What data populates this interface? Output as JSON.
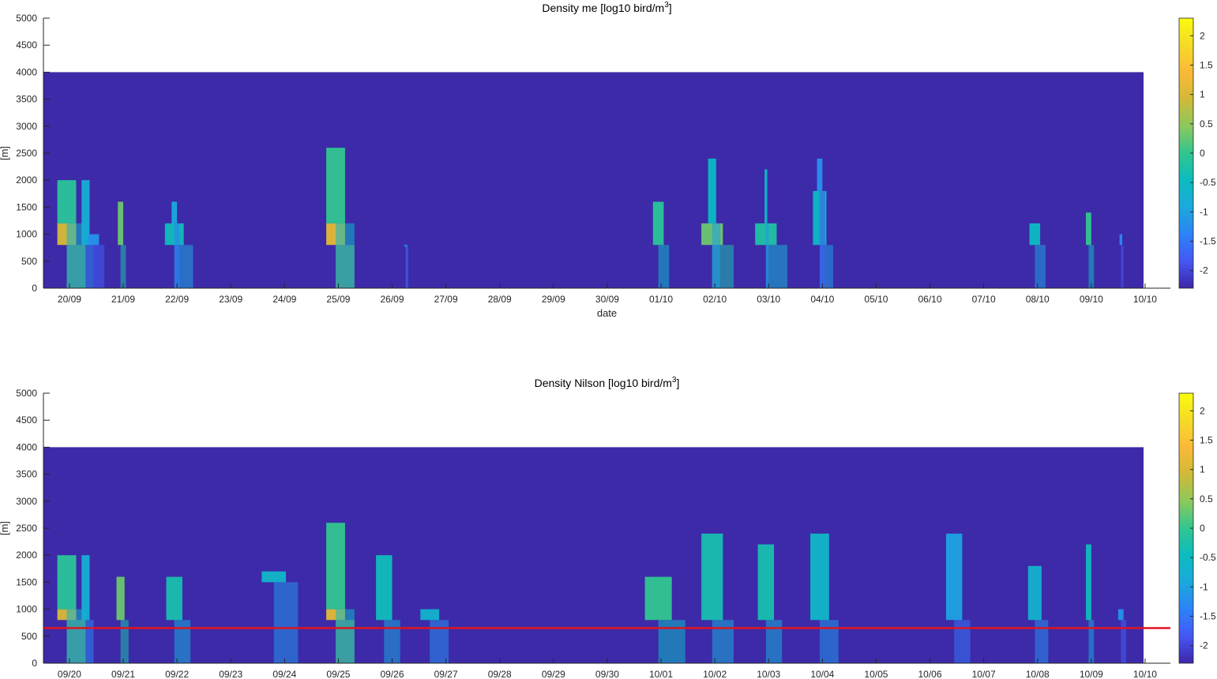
{
  "colors": {
    "background_field": "#3d2aa8",
    "axis": "#262626",
    "threshold_line": "#e0141e",
    "colormap": [
      "#3e26a8",
      "#4557f5",
      "#2c83f7",
      "#1aa9dc",
      "#0bbcbf",
      "#31c690",
      "#8cc85c",
      "#d0ba38",
      "#fbb938",
      "#f5db26",
      "#f9fb0e"
    ]
  },
  "chart_data": [
    {
      "type": "heatmap",
      "title_main": "Density me [log10 bird/m",
      "title_sup": "3",
      "title_end": "]",
      "xlabel": "date",
      "ylabel": "[m]",
      "ylim": [
        0,
        5000
      ],
      "yticks": [
        "0",
        "500",
        "1000",
        "1500",
        "2000",
        "2500",
        "3000",
        "3500",
        "4000",
        "4500",
        "5000"
      ],
      "xticks": [
        "20/09",
        "21/09",
        "22/09",
        "23/09",
        "24/09",
        "25/09",
        "26/09",
        "27/09",
        "28/09",
        "29/09",
        "30/09",
        "01/10",
        "02/10",
        "03/10",
        "04/10",
        "05/10",
        "06/10",
        "07/10",
        "08/10",
        "09/10",
        "10/10"
      ],
      "field_top_m": 4000,
      "colorbar": {
        "min": -2.3,
        "max": 2.3,
        "ticks": [
          "2",
          "1.5",
          "1",
          "0.5",
          "0",
          "-0.5",
          "-1",
          "-1.5",
          "-2"
        ]
      },
      "cells": [
        {
          "d": 0.25,
          "w": 0.35,
          "h0": 800,
          "h1": 1200,
          "v": 1.0
        },
        {
          "d": 0.25,
          "w": 0.35,
          "h0": 1200,
          "h1": 2000,
          "v": -0.1
        },
        {
          "d": 0.6,
          "w": 0.15,
          "h0": 800,
          "h1": 2000,
          "v": -0.8
        },
        {
          "d": 0.75,
          "w": 0.2,
          "h0": 800,
          "h1": 1000,
          "v": -1.2
        },
        {
          "d": 1.25,
          "w": 0.1,
          "h0": 800,
          "h1": 1600,
          "v": 0.3
        },
        {
          "d": 2.25,
          "w": 0.35,
          "h0": 800,
          "h1": 1200,
          "v": -0.4
        },
        {
          "d": 2.25,
          "w": 0.1,
          "h0": 1200,
          "h1": 1600,
          "v": -0.9
        },
        {
          "d": 5.25,
          "w": 0.35,
          "h0": 800,
          "h1": 1200,
          "v": 1.1
        },
        {
          "d": 5.25,
          "w": 0.35,
          "h0": 1200,
          "h1": 2600,
          "v": 0.0
        },
        {
          "d": 6.55,
          "w": 0.05,
          "h0": 800,
          "h1": 800,
          "v": -1.0
        },
        {
          "d": 11.25,
          "w": 0.2,
          "h0": 800,
          "h1": 1600,
          "v": -0.1
        },
        {
          "d": 12.25,
          "w": 0.4,
          "h0": 800,
          "h1": 1200,
          "v": 0.3
        },
        {
          "d": 12.25,
          "w": 0.15,
          "h0": 1200,
          "h1": 2400,
          "v": -0.5
        },
        {
          "d": 13.25,
          "w": 0.4,
          "h0": 800,
          "h1": 1200,
          "v": -0.2
        },
        {
          "d": 13.25,
          "w": 0.05,
          "h0": 1200,
          "h1": 2200,
          "v": -0.6
        },
        {
          "d": 14.25,
          "w": 0.25,
          "h0": 800,
          "h1": 1800,
          "v": -0.5
        },
        {
          "d": 14.25,
          "w": 0.1,
          "h0": 1800,
          "h1": 2400,
          "v": -1.2
        },
        {
          "d": 18.25,
          "w": 0.2,
          "h0": 800,
          "h1": 1200,
          "v": -0.5
        },
        {
          "d": 19.25,
          "w": 0.1,
          "h0": 800,
          "h1": 1400,
          "v": 0.0
        },
        {
          "d": 19.85,
          "w": 0.05,
          "h0": 800,
          "h1": 1000,
          "v": -1.3
        }
      ]
    },
    {
      "type": "heatmap",
      "title_main": "Density Nilson [log10 bird/m",
      "title_sup": "3",
      "title_end": "]",
      "xlabel": "",
      "ylabel": "[m]",
      "ylim": [
        0,
        5000
      ],
      "yticks": [
        "0",
        "500",
        "1000",
        "1500",
        "2000",
        "2500",
        "3000",
        "3500",
        "4000",
        "4500",
        "5000"
      ],
      "xticks": [
        "09/20",
        "09/21",
        "09/22",
        "09/23",
        "09/24",
        "09/25",
        "09/26",
        "09/27",
        "09/28",
        "09/29",
        "09/30",
        "10/01",
        "10/02",
        "10/03",
        "10/04",
        "10/05",
        "10/06",
        "10/07",
        "10/08",
        "10/09",
        "10/10"
      ],
      "field_top_m": 4000,
      "threshold_m": 650,
      "colorbar": {
        "min": -2.3,
        "max": 2.3,
        "ticks": [
          "2",
          "1.5",
          "1",
          "0.5",
          "0",
          "-0.5",
          "-1",
          "-1.5",
          "-2"
        ]
      },
      "cells": [
        {
          "d": 0.25,
          "w": 0.35,
          "h0": 800,
          "h1": 1000,
          "v": 1.0
        },
        {
          "d": 0.25,
          "w": 0.35,
          "h0": 1000,
          "h1": 2000,
          "v": -0.1
        },
        {
          "d": 0.6,
          "w": 0.15,
          "h0": 800,
          "h1": 2000,
          "v": -0.8
        },
        {
          "d": 1.25,
          "w": 0.15,
          "h0": 800,
          "h1": 1600,
          "v": 0.3
        },
        {
          "d": 2.25,
          "w": 0.3,
          "h0": 800,
          "h1": 1600,
          "v": -0.3
        },
        {
          "d": 4.1,
          "w": 0.45,
          "h0": 1500,
          "h1": 1700,
          "v": -0.6
        },
        {
          "d": 5.25,
          "w": 0.35,
          "h0": 800,
          "h1": 1000,
          "v": 1.1
        },
        {
          "d": 5.25,
          "w": 0.35,
          "h0": 1000,
          "h1": 2600,
          "v": 0.0
        },
        {
          "d": 6.15,
          "w": 0.3,
          "h0": 800,
          "h1": 2000,
          "v": -0.4
        },
        {
          "d": 7.0,
          "w": 0.35,
          "h0": 800,
          "h1": 1000,
          "v": -0.7
        },
        {
          "d": 11.25,
          "w": 0.5,
          "h0": 800,
          "h1": 1600,
          "v": 0.0
        },
        {
          "d": 12.25,
          "w": 0.4,
          "h0": 800,
          "h1": 2400,
          "v": -0.3
        },
        {
          "d": 13.25,
          "w": 0.3,
          "h0": 800,
          "h1": 2200,
          "v": -0.3
        },
        {
          "d": 14.25,
          "w": 0.35,
          "h0": 800,
          "h1": 2400,
          "v": -0.6
        },
        {
          "d": 16.75,
          "w": 0.3,
          "h0": 800,
          "h1": 2400,
          "v": -1.0
        },
        {
          "d": 18.25,
          "w": 0.25,
          "h0": 800,
          "h1": 1800,
          "v": -0.7
        },
        {
          "d": 19.25,
          "w": 0.1,
          "h0": 800,
          "h1": 2200,
          "v": -0.4
        },
        {
          "d": 19.85,
          "w": 0.1,
          "h0": 800,
          "h1": 1000,
          "v": -1.2
        }
      ]
    }
  ]
}
